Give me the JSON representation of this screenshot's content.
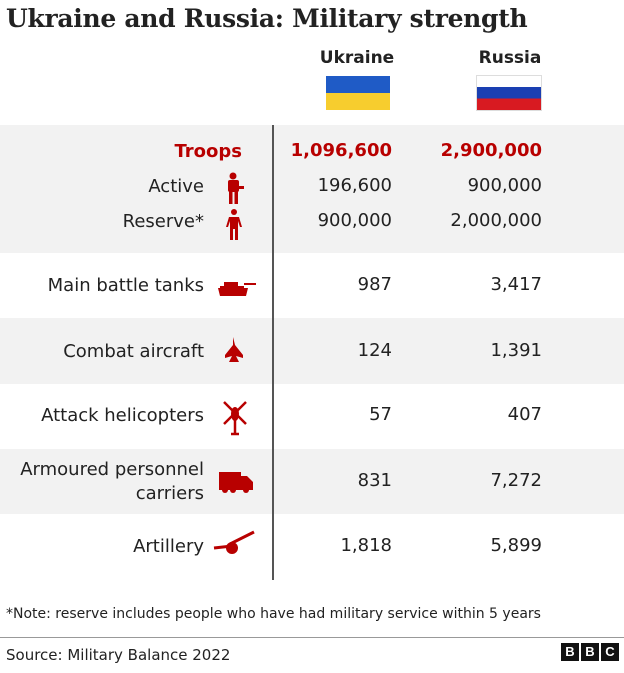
{
  "title": "Ukraine and Russia: Military strength",
  "columns": {
    "ukraine": "Ukraine",
    "russia": "Russia"
  },
  "colors": {
    "accent": "#b80000",
    "row_alt": "#f2f2f2",
    "ukraine_blue": "#1f5bc6",
    "ukraine_yellow": "#f7cd2e",
    "russia_red": "#d81a21",
    "russia_blue": "#1a3fb2"
  },
  "chart_data": {
    "type": "table",
    "title": "Ukraine and Russia: Military strength",
    "columns": [
      "Ukraine",
      "Russia"
    ],
    "rows": [
      {
        "label": "Troops",
        "ukraine": "1,096,600",
        "russia": "2,900,000"
      },
      {
        "label": "Active",
        "icon": "soldier-icon",
        "ukraine": "196,600",
        "russia": "900,000"
      },
      {
        "label": "Reserve*",
        "icon": "person-icon",
        "ukraine": "900,000",
        "russia": "2,000,000"
      },
      {
        "label": "Main battle tanks",
        "icon": "tank-icon",
        "ukraine": "987",
        "russia": "3,417"
      },
      {
        "label": "Combat aircraft",
        "icon": "jet-icon",
        "ukraine": "124",
        "russia": "1,391"
      },
      {
        "label": "Attack helicopters",
        "icon": "helicopter-icon",
        "ukraine": "57",
        "russia": "407"
      },
      {
        "label": "Armoured personnel carriers",
        "label_line1": "Armoured personnel",
        "label_line2": "carriers",
        "icon": "truck-icon",
        "ukraine": "831",
        "russia": "7,272"
      },
      {
        "label": "Artillery",
        "icon": "artillery-icon",
        "ukraine": "1,818",
        "russia": "5,899"
      }
    ]
  },
  "note": "*Note: reserve includes people who have had military service within 5 years",
  "source": "Source: Military Balance 2022",
  "logo": [
    "B",
    "B",
    "C"
  ]
}
